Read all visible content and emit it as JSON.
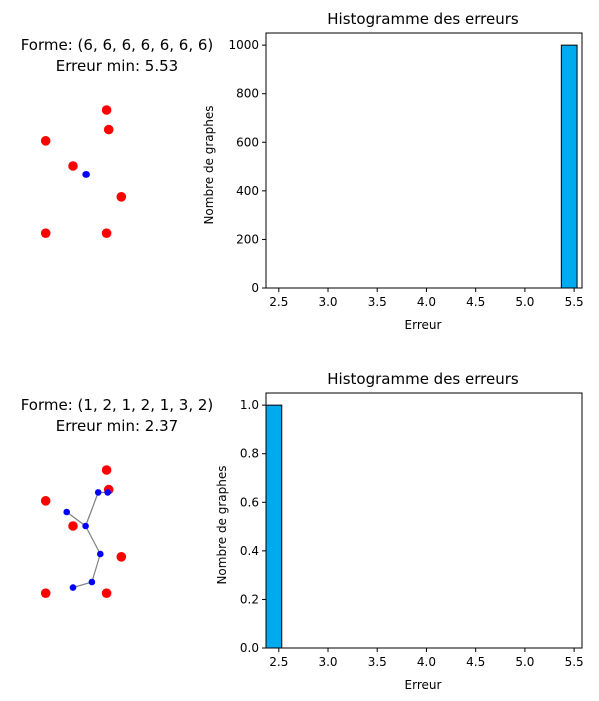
{
  "colors": {
    "target_point": "#ff0000",
    "graph_node": "#0000ff",
    "graph_edge": "#808080",
    "bar_fill": "#00aaee",
    "bar_edge": "#000000"
  },
  "panels": [
    {
      "shape_title": "Forme: (6, 6, 6, 6, 6, 6, 6)",
      "error_title": "Erreur min: 5.53",
      "scatter": {
        "red_points": [
          [
            0.17,
            0.64
          ],
          [
            0.3,
            0.55
          ],
          [
            0.46,
            0.75
          ],
          [
            0.47,
            0.68
          ],
          [
            0.53,
            0.44
          ],
          [
            0.17,
            0.31
          ],
          [
            0.46,
            0.31
          ]
        ],
        "blue_nodes": [
          [
            0.36,
            0.52
          ],
          [
            0.365,
            0.52
          ]
        ],
        "edges": [
          [
            0,
            1
          ]
        ]
      },
      "chart_data": {
        "type": "bar",
        "title": "Histogramme des erreurs",
        "xlabel": "Erreur",
        "ylabel": "Nombre de graphes",
        "xlim": [
          2.37,
          5.58
        ],
        "ylim": [
          0,
          1050
        ],
        "xticks": [
          "2.5",
          "3.0",
          "3.5",
          "4.0",
          "4.5",
          "5.0",
          "5.5"
        ],
        "xtick_values": [
          2.5,
          3.0,
          3.5,
          4.0,
          4.5,
          5.0,
          5.5
        ],
        "yticks": [
          "0",
          "200",
          "400",
          "600",
          "800",
          "1000"
        ],
        "ytick_values": [
          0,
          200,
          400,
          600,
          800,
          1000
        ],
        "bins": [
          {
            "x0": 5.37,
            "x1": 5.53,
            "value": 1000
          }
        ]
      }
    },
    {
      "shape_title": "Forme: (1, 2, 1, 2, 1, 3, 2)",
      "error_title": "Erreur min: 2.37",
      "scatter": {
        "red_points": [
          [
            0.17,
            0.64
          ],
          [
            0.3,
            0.55
          ],
          [
            0.46,
            0.75
          ],
          [
            0.47,
            0.68
          ],
          [
            0.53,
            0.44
          ],
          [
            0.17,
            0.31
          ],
          [
            0.46,
            0.31
          ]
        ],
        "blue_nodes": [
          [
            0.27,
            0.6
          ],
          [
            0.36,
            0.55
          ],
          [
            0.42,
            0.67
          ],
          [
            0.465,
            0.67
          ],
          [
            0.43,
            0.45
          ],
          [
            0.39,
            0.35
          ],
          [
            0.3,
            0.33
          ]
        ],
        "edges": [
          [
            0,
            1
          ],
          [
            1,
            2
          ],
          [
            2,
            3
          ],
          [
            1,
            4
          ],
          [
            4,
            5
          ],
          [
            5,
            6
          ]
        ]
      },
      "chart_data": {
        "type": "bar",
        "title": "Histogramme des erreurs",
        "xlabel": "Erreur",
        "ylabel": "Nombre de graphes",
        "xlim": [
          2.37,
          5.58
        ],
        "ylim": [
          0,
          1.05
        ],
        "xticks": [
          "2.5",
          "3.0",
          "3.5",
          "4.0",
          "4.5",
          "5.0",
          "5.5"
        ],
        "xtick_values": [
          2.5,
          3.0,
          3.5,
          4.0,
          4.5,
          5.0,
          5.5
        ],
        "yticks": [
          "0.0",
          "0.2",
          "0.4",
          "0.6",
          "0.8",
          "1.0"
        ],
        "ytick_values": [
          0,
          0.2,
          0.4,
          0.6,
          0.8,
          1.0
        ],
        "bins": [
          {
            "x0": 2.37,
            "x1": 2.53,
            "value": 1
          }
        ]
      }
    }
  ]
}
